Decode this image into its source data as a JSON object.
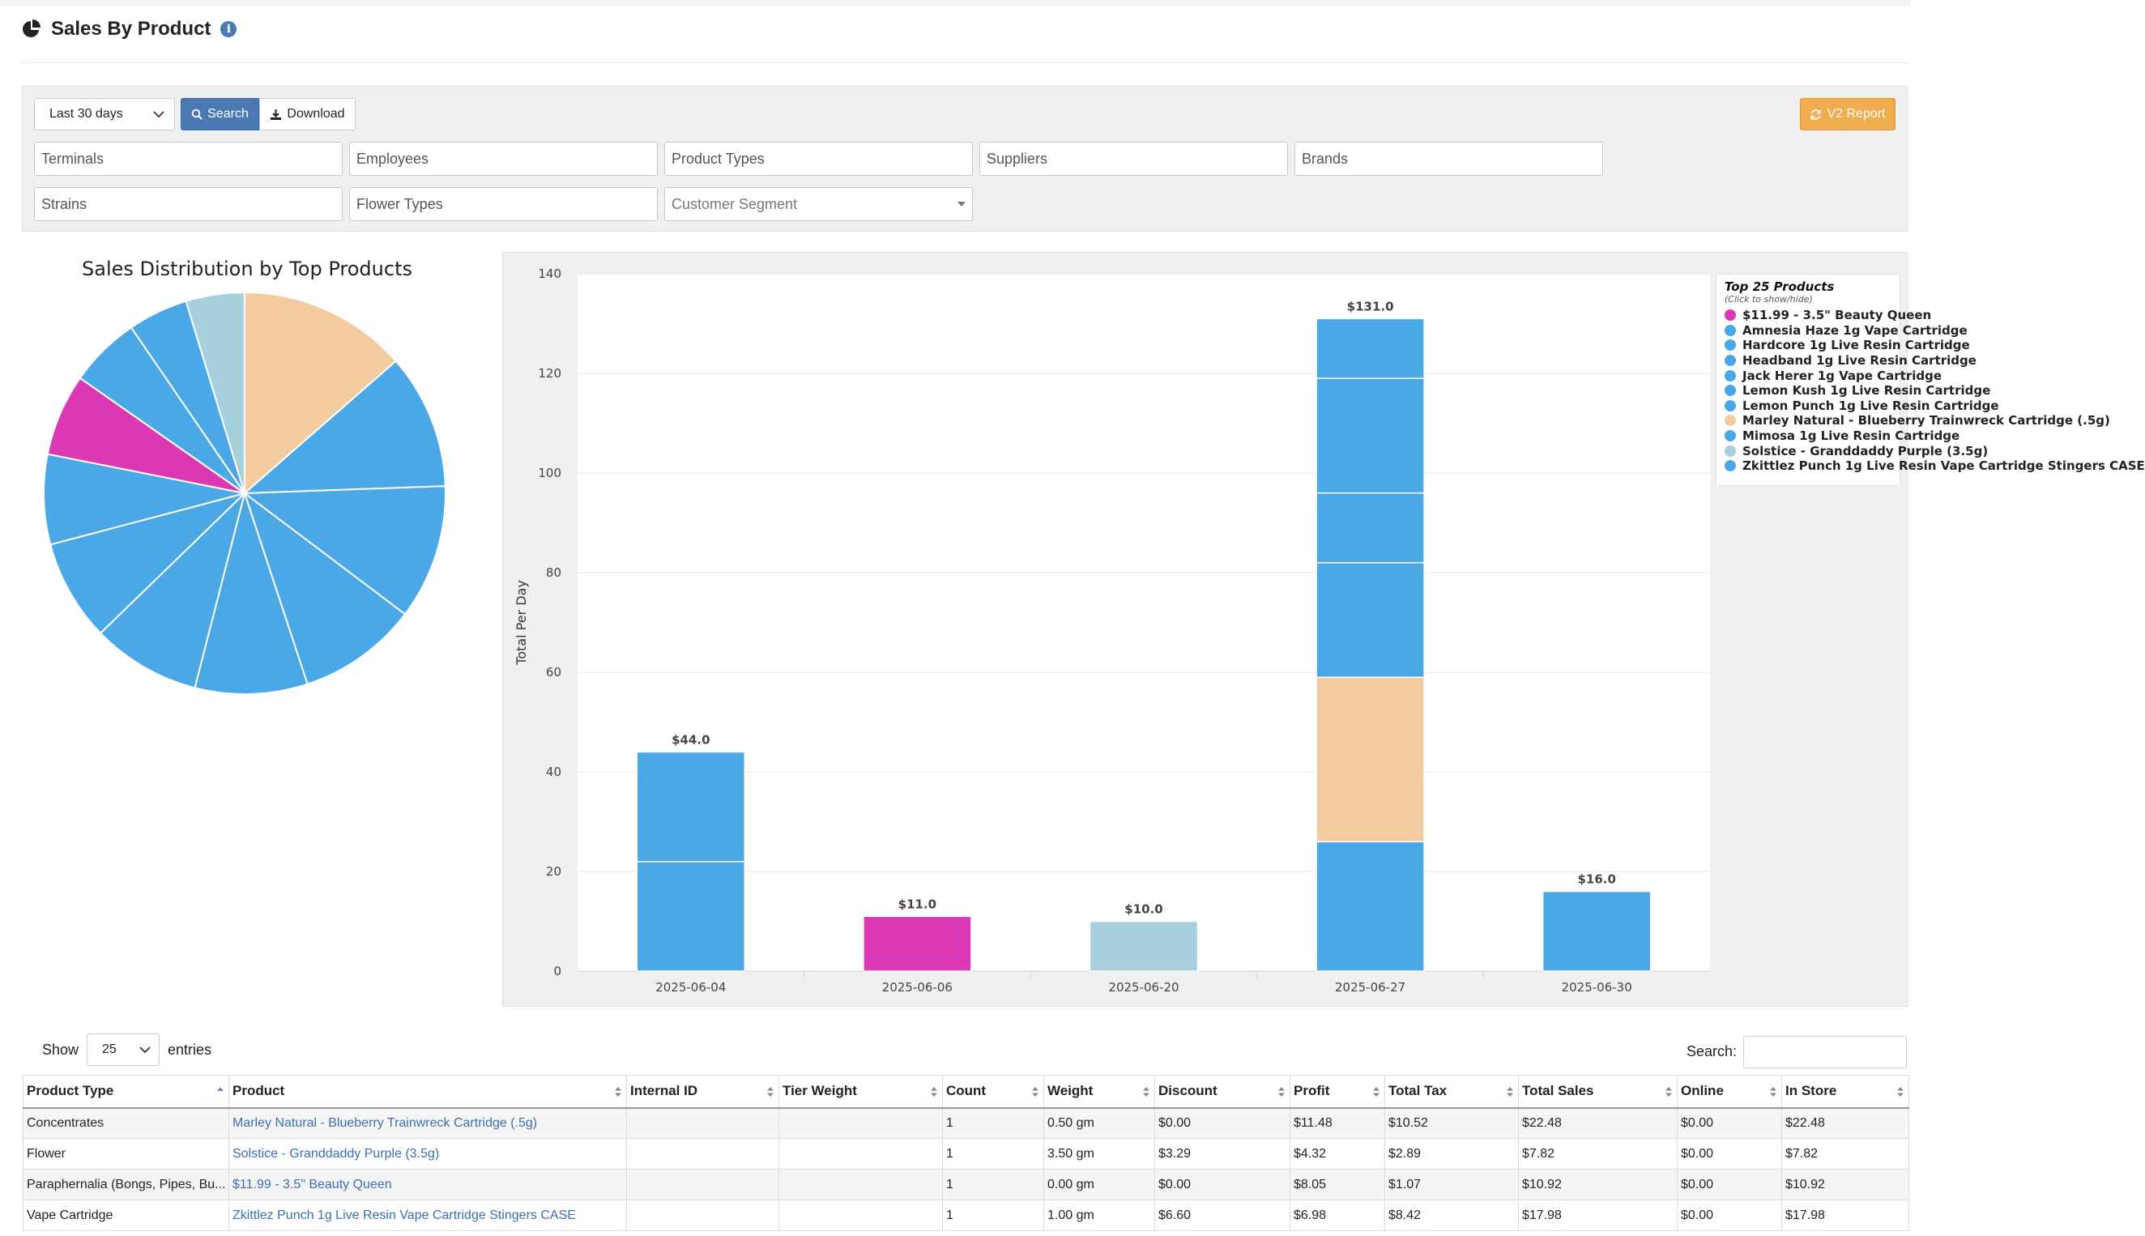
{
  "page": {
    "title": "Sales By Product"
  },
  "filters": {
    "range": "Last 30 days",
    "search_label": "Search",
    "download_label": "Download",
    "v2_label": "V2 Report",
    "terminals": "Terminals",
    "employees": "Employees",
    "product_types": "Product Types",
    "suppliers": "Suppliers",
    "brands": "Brands",
    "strains": "Strains",
    "flower_types": "Flower Types",
    "customer_segment": "Customer Segment"
  },
  "pie": {
    "title": "Sales Distribution by Top Products",
    "colors": {
      "blue": "#4BA8E6",
      "peach": "#F2CB9F",
      "magenta": "#DC37B4",
      "lightblue": "#A6D0DC"
    }
  },
  "chart_data": {
    "type": "bar",
    "stacked": true,
    "categories": [
      "2025-06-04",
      "2025-06-06",
      "2025-06-20",
      "2025-06-27",
      "2025-06-30"
    ],
    "ylabel": "Total Per Day",
    "ylim": [
      0,
      140
    ],
    "yticks": [
      0,
      20,
      40,
      60,
      80,
      100,
      120,
      140
    ],
    "totals": [
      "$44.0",
      "$11.0",
      "$10.0",
      "$131.0",
      "$16.0"
    ],
    "stacks": [
      [
        {
          "value": 22,
          "color": "#4BA8E6"
        },
        {
          "value": 22,
          "color": "#4BA8E6"
        }
      ],
      [
        {
          "value": 11,
          "color": "#DC37B4"
        }
      ],
      [
        {
          "value": 10,
          "color": "#A6D0DC"
        }
      ],
      [
        {
          "value": 26,
          "color": "#4BA8E6"
        },
        {
          "value": 33,
          "color": "#F2CB9F"
        },
        {
          "value": 23,
          "color": "#4BA8E6"
        },
        {
          "value": 14,
          "color": "#4BA8E6"
        },
        {
          "value": 23,
          "color": "#4BA8E6"
        },
        {
          "value": 12,
          "color": "#4BA8E6"
        }
      ],
      [
        {
          "value": 16,
          "color": "#4BA8E6"
        }
      ]
    ],
    "legend": {
      "title": "Top 25 Products",
      "subtitle": "(Click to show/hide)",
      "placement": "top-right",
      "items": [
        {
          "name": "$11.99 - 3.5\" Beauty Queen",
          "color": "#DC37B4"
        },
        {
          "name": "Amnesia Haze 1g Vape Cartridge",
          "color": "#4BA8E6"
        },
        {
          "name": "Hardcore 1g Live Resin Cartridge",
          "color": "#4BA8E6"
        },
        {
          "name": "Headband 1g Live Resin Cartridge",
          "color": "#4BA8E6"
        },
        {
          "name": "Jack Herer 1g Vape Cartridge",
          "color": "#4BA8E6"
        },
        {
          "name": "Lemon Kush 1g Live Resin Cartridge",
          "color": "#4BA8E6"
        },
        {
          "name": "Lemon Punch 1g Live Resin Cartridge",
          "color": "#4BA8E6"
        },
        {
          "name": "Marley Natural - Blueberry Trainwreck Cartridge (.5g)",
          "color": "#F2CB9F"
        },
        {
          "name": "Mimosa 1g Live Resin Cartridge",
          "color": "#4BA8E6"
        },
        {
          "name": "Solstice - Granddaddy Purple (3.5g)",
          "color": "#A6D0DC"
        },
        {
          "name": "Zkittlez Punch 1g Live Resin Vape Cartridge Stingers CASE",
          "color": "#4BA8E6"
        }
      ]
    },
    "pie_slices": [
      {
        "value": 22.48,
        "color": "#F2CB9F"
      },
      {
        "value": 18,
        "color": "#4BA8E6"
      },
      {
        "value": 17.98,
        "color": "#4BA8E6"
      },
      {
        "value": 16,
        "color": "#4BA8E6"
      },
      {
        "value": 15,
        "color": "#4BA8E6"
      },
      {
        "value": 14.5,
        "color": "#4BA8E6"
      },
      {
        "value": 13.5,
        "color": "#4BA8E6"
      },
      {
        "value": 12,
        "color": "#4BA8E6"
      },
      {
        "value": 10.92,
        "color": "#DC37B4"
      },
      {
        "value": 9.5,
        "color": "#4BA8E6"
      },
      {
        "value": 8,
        "color": "#4BA8E6"
      },
      {
        "value": 7.82,
        "color": "#A6D0DC"
      }
    ]
  },
  "table": {
    "show_label": "Show",
    "entries_value": "25",
    "entries_label": "entries",
    "search_label": "Search:",
    "columns": [
      "Product Type",
      "Product",
      "Internal ID",
      "Tier Weight",
      "Count",
      "Weight",
      "Discount",
      "Profit",
      "Total Tax",
      "Total Sales",
      "Online",
      "In Store"
    ],
    "rows": [
      [
        "Concentrates",
        "Marley Natural - Blueberry Trainwreck Cartridge (.5g)",
        "",
        "",
        "1",
        "0.50 gm",
        "$0.00",
        "$11.48",
        "$10.52",
        "$22.48",
        "$0.00",
        "$22.48"
      ],
      [
        "Flower",
        "Solstice - Granddaddy Purple (3.5g)",
        "",
        "",
        "1",
        "3.50 gm",
        "$3.29",
        "$4.32",
        "$2.89",
        "$7.82",
        "$0.00",
        "$7.82"
      ],
      [
        "Paraphernalia (Bongs, Pipes, Bu...",
        "$11.99 - 3.5\" Beauty Queen",
        "",
        "",
        "1",
        "0.00 gm",
        "$0.00",
        "$8.05",
        "$1.07",
        "$10.92",
        "$0.00",
        "$10.92"
      ],
      [
        "Vape Cartridge",
        "Zkittlez Punch 1g Live Resin Vape Cartridge Stingers CASE",
        "",
        "",
        "1",
        "1.00 gm",
        "$6.60",
        "$6.98",
        "$8.42",
        "$17.98",
        "$0.00",
        "$17.98"
      ]
    ]
  }
}
